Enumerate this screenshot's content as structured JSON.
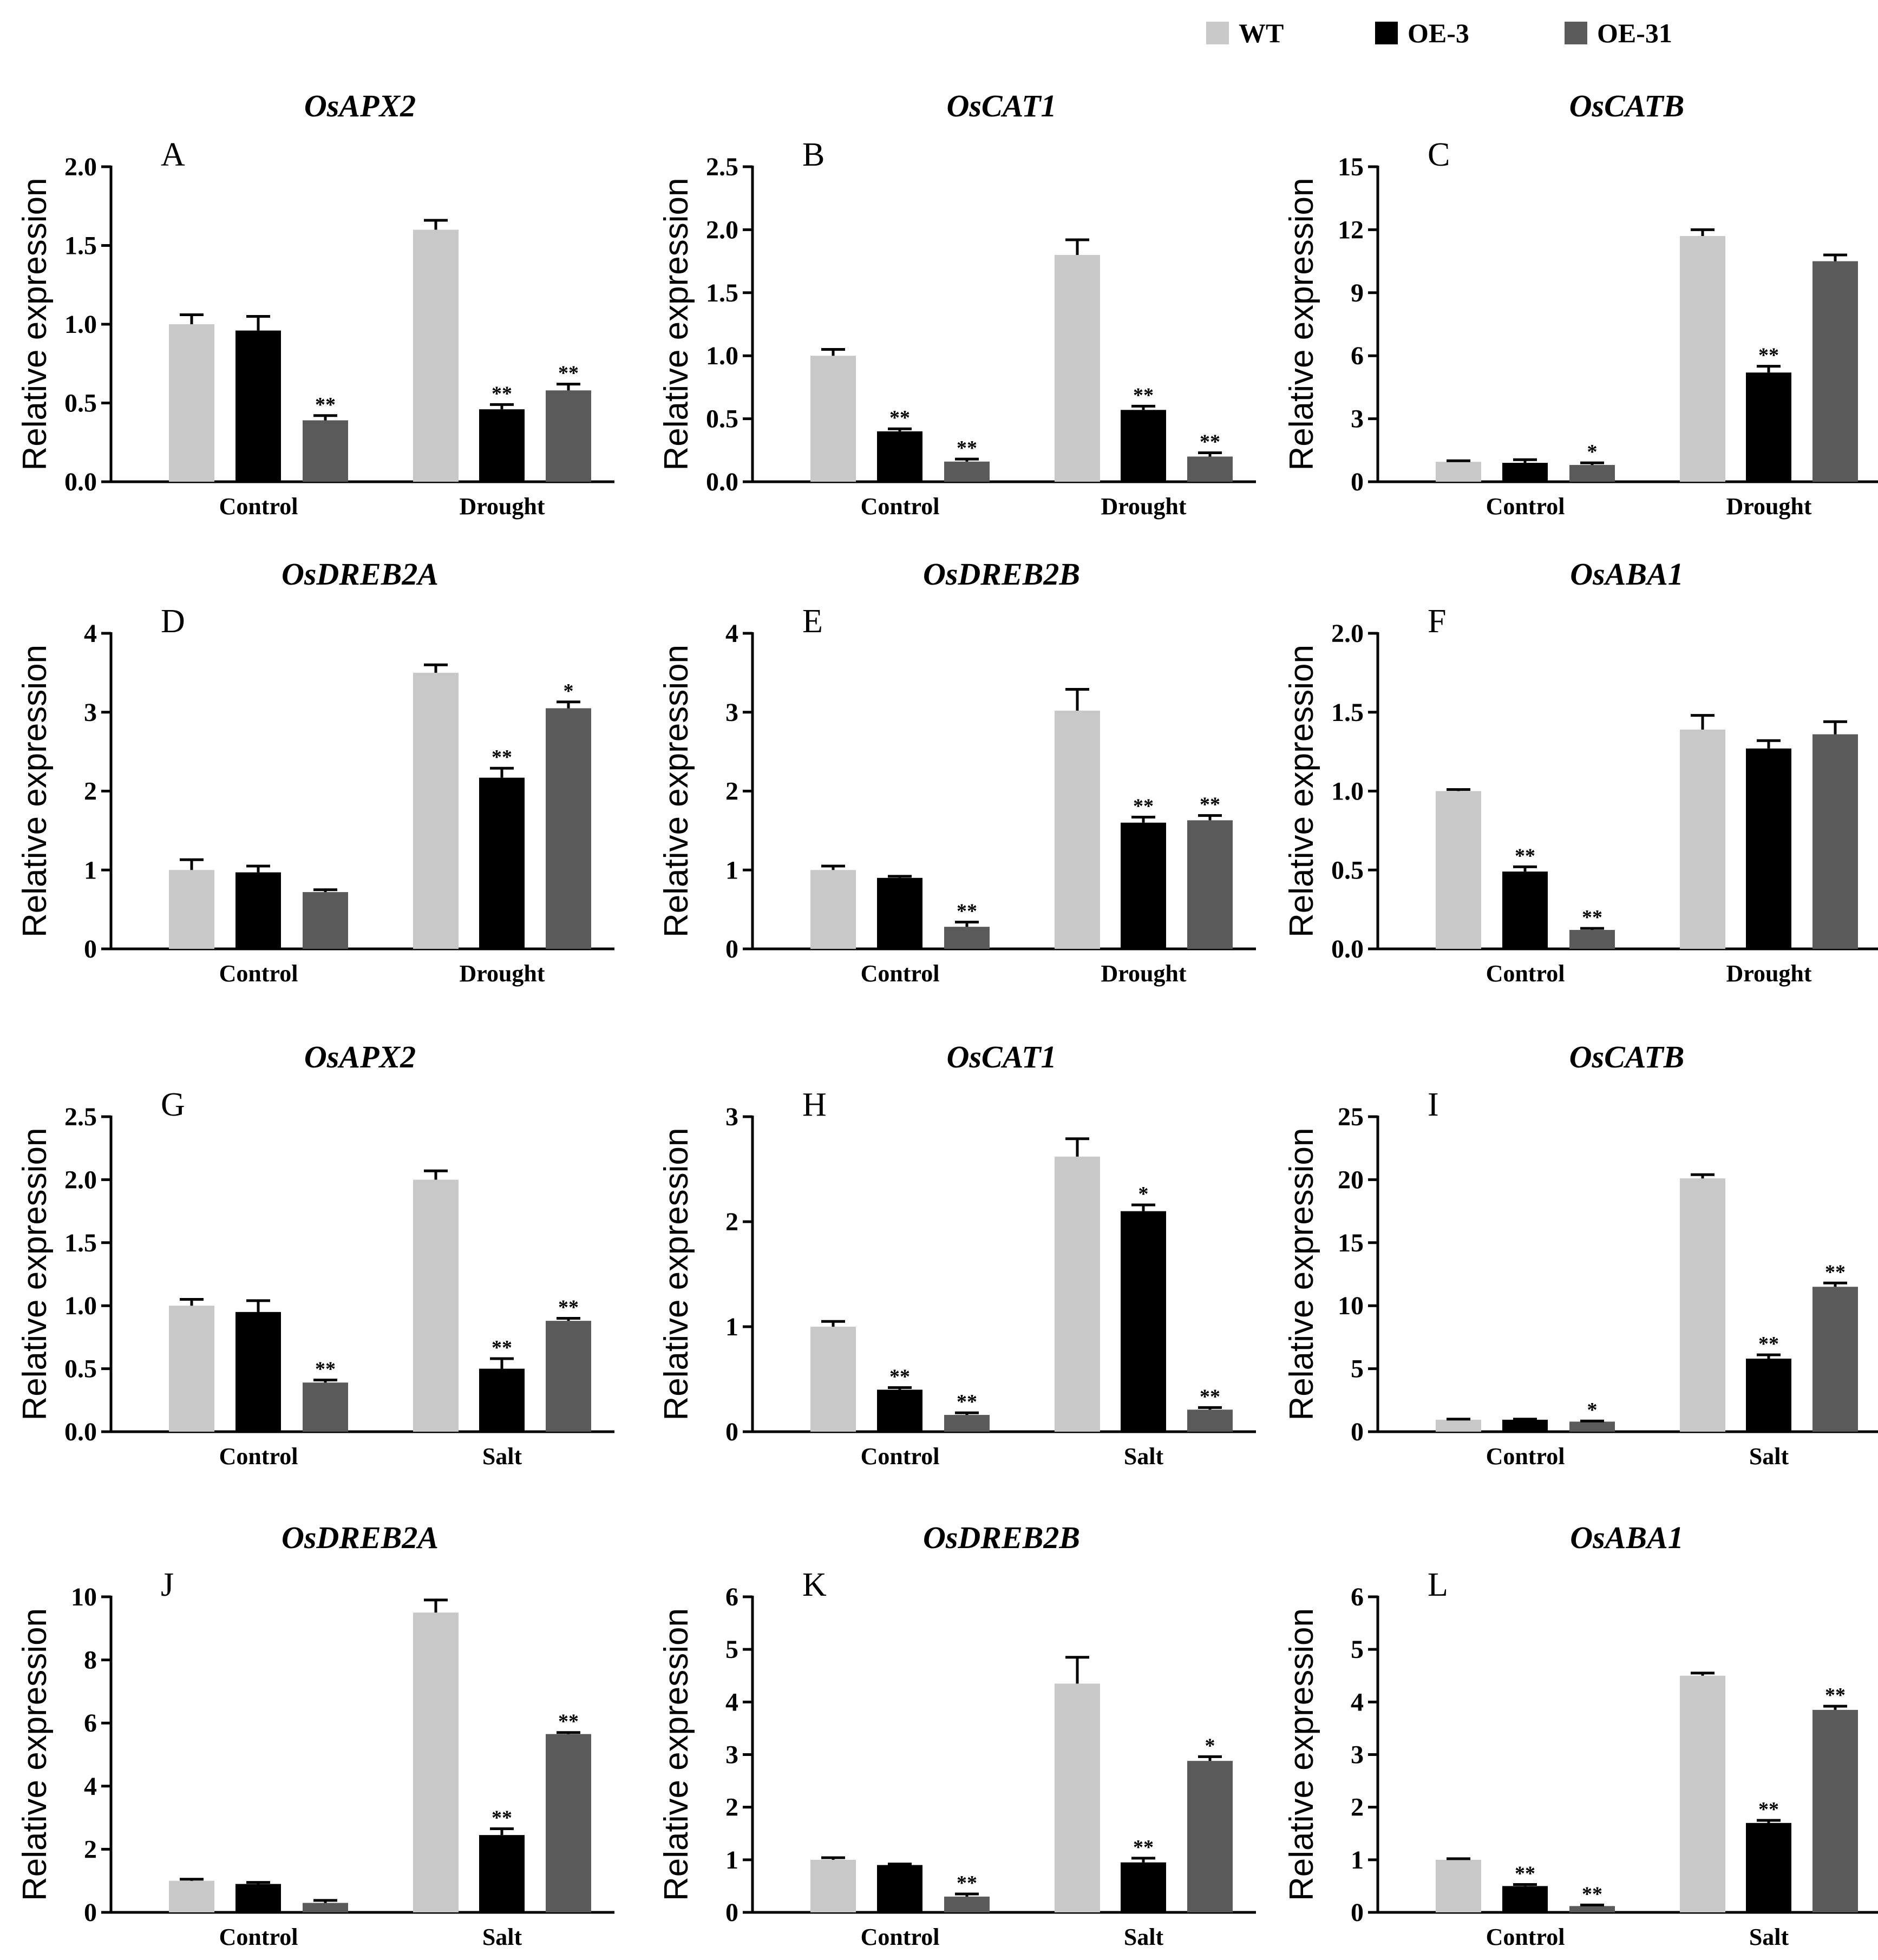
{
  "legend": [
    {
      "name": "WT",
      "color": "#c8c8c8"
    },
    {
      "name": "OE-3",
      "color": "#000000"
    },
    {
      "name": "OE-31",
      "color": "#5a5a5a"
    }
  ],
  "chart_data": [
    {
      "letter": "A",
      "title": "OsAPX2",
      "type": "bar",
      "ylabel": "Relative expression",
      "ylim": [
        0,
        2.0
      ],
      "ticks": [
        "0.0",
        "0.5",
        "1.0",
        "1.5",
        "2.0"
      ],
      "categories": [
        "Control",
        "Drought"
      ],
      "series": [
        {
          "name": "WT",
          "values": [
            1.0,
            1.6
          ],
          "errors": [
            0.06,
            0.06
          ],
          "sig": [
            "",
            ""
          ]
        },
        {
          "name": "OE-3",
          "values": [
            0.96,
            0.46
          ],
          "errors": [
            0.09,
            0.03
          ],
          "sig": [
            "",
            "**"
          ]
        },
        {
          "name": "OE-31",
          "values": [
            0.39,
            0.58
          ],
          "errors": [
            0.03,
            0.04
          ],
          "sig": [
            "**",
            "**"
          ]
        }
      ]
    },
    {
      "letter": "B",
      "title": "OsCAT1",
      "type": "bar",
      "ylabel": "Relative expression",
      "ylim": [
        0,
        2.5
      ],
      "ticks": [
        "0.0",
        "0.5",
        "1.0",
        "1.5",
        "2.0",
        "2.5"
      ],
      "categories": [
        "Control",
        "Drought"
      ],
      "series": [
        {
          "name": "WT",
          "values": [
            1.0,
            1.8
          ],
          "errors": [
            0.05,
            0.12
          ],
          "sig": [
            "",
            ""
          ]
        },
        {
          "name": "OE-3",
          "values": [
            0.4,
            0.57
          ],
          "errors": [
            0.02,
            0.03
          ],
          "sig": [
            "**",
            "**"
          ]
        },
        {
          "name": "OE-31",
          "values": [
            0.16,
            0.2
          ],
          "errors": [
            0.02,
            0.03
          ],
          "sig": [
            "**",
            "**"
          ]
        }
      ]
    },
    {
      "letter": "C",
      "title": "OsCATB",
      "type": "bar",
      "ylabel": "Relative expression",
      "ylim": [
        0,
        15
      ],
      "ticks": [
        "0",
        "3",
        "6",
        "9",
        "12",
        "15"
      ],
      "categories": [
        "Control",
        "Drought"
      ],
      "series": [
        {
          "name": "WT",
          "values": [
            0.95,
            11.7
          ],
          "errors": [
            0.05,
            0.3
          ],
          "sig": [
            "",
            ""
          ]
        },
        {
          "name": "OE-3",
          "values": [
            0.9,
            5.2
          ],
          "errors": [
            0.15,
            0.3
          ],
          "sig": [
            "",
            "**"
          ]
        },
        {
          "name": "OE-31",
          "values": [
            0.8,
            10.5
          ],
          "errors": [
            0.1,
            0.3
          ],
          "sig": [
            "*",
            ""
          ]
        }
      ]
    },
    {
      "letter": "D",
      "title": "OsDREB2A",
      "type": "bar",
      "ylabel": "Relative expression",
      "ylim": [
        0,
        4
      ],
      "ticks": [
        "0",
        "1",
        "2",
        "3",
        "4"
      ],
      "categories": [
        "Control",
        "Drought"
      ],
      "series": [
        {
          "name": "WT",
          "values": [
            1.0,
            3.5
          ],
          "errors": [
            0.13,
            0.1
          ],
          "sig": [
            "",
            ""
          ]
        },
        {
          "name": "OE-3",
          "values": [
            0.97,
            2.17
          ],
          "errors": [
            0.08,
            0.12
          ],
          "sig": [
            "",
            "**"
          ]
        },
        {
          "name": "OE-31",
          "values": [
            0.72,
            3.05
          ],
          "errors": [
            0.03,
            0.08
          ],
          "sig": [
            "",
            "*"
          ]
        }
      ]
    },
    {
      "letter": "E",
      "title": "OsDREB2B",
      "type": "bar",
      "ylabel": "Relative expression",
      "ylim": [
        0,
        4
      ],
      "ticks": [
        "0",
        "1",
        "2",
        "3",
        "4"
      ],
      "categories": [
        "Control",
        "Drought"
      ],
      "series": [
        {
          "name": "WT",
          "values": [
            1.0,
            3.02
          ],
          "errors": [
            0.05,
            0.27
          ],
          "sig": [
            "",
            ""
          ]
        },
        {
          "name": "OE-3",
          "values": [
            0.9,
            1.6
          ],
          "errors": [
            0.02,
            0.07
          ],
          "sig": [
            "",
            "**"
          ]
        },
        {
          "name": "OE-31",
          "values": [
            0.28,
            1.63
          ],
          "errors": [
            0.06,
            0.06
          ],
          "sig": [
            "**",
            "**"
          ]
        }
      ]
    },
    {
      "letter": "F",
      "title": "OsABA1",
      "type": "bar",
      "ylabel": "Relative expression",
      "ylim": [
        0,
        2.0
      ],
      "ticks": [
        "0.0",
        "0.5",
        "1.0",
        "1.5",
        "2.0"
      ],
      "categories": [
        "Control",
        "Drought"
      ],
      "series": [
        {
          "name": "WT",
          "values": [
            1.0,
            1.39
          ],
          "errors": [
            0.01,
            0.09
          ],
          "sig": [
            "",
            ""
          ]
        },
        {
          "name": "OE-3",
          "values": [
            0.49,
            1.27
          ],
          "errors": [
            0.03,
            0.05
          ],
          "sig": [
            "**",
            ""
          ]
        },
        {
          "name": "OE-31",
          "values": [
            0.12,
            1.36
          ],
          "errors": [
            0.01,
            0.08
          ],
          "sig": [
            "**",
            ""
          ]
        }
      ]
    },
    {
      "letter": "G",
      "title": "OsAPX2",
      "type": "bar",
      "ylabel": "Relative expression",
      "ylim": [
        0,
        2.5
      ],
      "ticks": [
        "0.0",
        "0.5",
        "1.0",
        "1.5",
        "2.0",
        "2.5"
      ],
      "categories": [
        "Control",
        "Salt"
      ],
      "series": [
        {
          "name": "WT",
          "values": [
            1.0,
            2.0
          ],
          "errors": [
            0.05,
            0.07
          ],
          "sig": [
            "",
            ""
          ]
        },
        {
          "name": "OE-3",
          "values": [
            0.95,
            0.5
          ],
          "errors": [
            0.09,
            0.08
          ],
          "sig": [
            "",
            "**"
          ]
        },
        {
          "name": "OE-31",
          "values": [
            0.39,
            0.88
          ],
          "errors": [
            0.02,
            0.02
          ],
          "sig": [
            "**",
            "**"
          ]
        }
      ]
    },
    {
      "letter": "H",
      "title": "OsCAT1",
      "type": "bar",
      "ylabel": "Relative expression",
      "ylim": [
        0,
        3
      ],
      "ticks": [
        "0",
        "1",
        "2",
        "3"
      ],
      "categories": [
        "Control",
        "Salt"
      ],
      "series": [
        {
          "name": "WT",
          "values": [
            1.0,
            2.62
          ],
          "errors": [
            0.05,
            0.17
          ],
          "sig": [
            "",
            ""
          ]
        },
        {
          "name": "OE-3",
          "values": [
            0.4,
            2.1
          ],
          "errors": [
            0.02,
            0.06
          ],
          "sig": [
            "**",
            "*"
          ]
        },
        {
          "name": "OE-31",
          "values": [
            0.16,
            0.21
          ],
          "errors": [
            0.02,
            0.02
          ],
          "sig": [
            "**",
            "**"
          ]
        }
      ]
    },
    {
      "letter": "I",
      "title": "OsCATB",
      "type": "bar",
      "ylabel": "Relative expression",
      "ylim": [
        0,
        25
      ],
      "ticks": [
        "0",
        "5",
        "10",
        "15",
        "20",
        "25"
      ],
      "categories": [
        "Control",
        "Salt"
      ],
      "series": [
        {
          "name": "WT",
          "values": [
            0.95,
            20.1
          ],
          "errors": [
            0.05,
            0.3
          ],
          "sig": [
            "",
            ""
          ]
        },
        {
          "name": "OE-3",
          "values": [
            0.95,
            5.8
          ],
          "errors": [
            0.05,
            0.3
          ],
          "sig": [
            "",
            "**"
          ]
        },
        {
          "name": "OE-31",
          "values": [
            0.8,
            11.5
          ],
          "errors": [
            0.05,
            0.3
          ],
          "sig": [
            "*",
            "**"
          ]
        }
      ]
    },
    {
      "letter": "J",
      "title": "OsDREB2A",
      "type": "bar",
      "ylabel": "Relative expression",
      "ylim": [
        0,
        10
      ],
      "ticks": [
        "0",
        "2",
        "4",
        "6",
        "8",
        "10"
      ],
      "categories": [
        "Control",
        "Salt"
      ],
      "series": [
        {
          "name": "WT",
          "values": [
            1.0,
            9.5
          ],
          "errors": [
            0.05,
            0.4
          ],
          "sig": [
            "",
            ""
          ]
        },
        {
          "name": "OE-3",
          "values": [
            0.9,
            2.45
          ],
          "errors": [
            0.05,
            0.2
          ],
          "sig": [
            "",
            "**"
          ]
        },
        {
          "name": "OE-31",
          "values": [
            0.3,
            5.65
          ],
          "errors": [
            0.08,
            0.05
          ],
          "sig": [
            "",
            "**"
          ]
        }
      ]
    },
    {
      "letter": "K",
      "title": "OsDREB2B",
      "type": "bar",
      "ylabel": "Relative expression",
      "ylim": [
        0,
        6
      ],
      "ticks": [
        "0",
        "1",
        "2",
        "3",
        "4",
        "5",
        "6"
      ],
      "categories": [
        "Control",
        "Salt"
      ],
      "series": [
        {
          "name": "WT",
          "values": [
            1.0,
            4.35
          ],
          "errors": [
            0.04,
            0.5
          ],
          "sig": [
            "",
            ""
          ]
        },
        {
          "name": "OE-3",
          "values": [
            0.9,
            0.95
          ],
          "errors": [
            0.02,
            0.08
          ],
          "sig": [
            "",
            "**"
          ]
        },
        {
          "name": "OE-31",
          "values": [
            0.3,
            2.88
          ],
          "errors": [
            0.05,
            0.08
          ],
          "sig": [
            "**",
            "*"
          ]
        }
      ]
    },
    {
      "letter": "L",
      "title": "OsABA1",
      "type": "bar",
      "ylabel": "Relative expression",
      "ylim": [
        0,
        6
      ],
      "ticks": [
        "0",
        "1",
        "2",
        "3",
        "4",
        "5",
        "6"
      ],
      "categories": [
        "Control",
        "Salt"
      ],
      "series": [
        {
          "name": "WT",
          "values": [
            1.0,
            4.5
          ],
          "errors": [
            0.02,
            0.05
          ],
          "sig": [
            "",
            ""
          ]
        },
        {
          "name": "OE-3",
          "values": [
            0.5,
            1.7
          ],
          "errors": [
            0.03,
            0.05
          ],
          "sig": [
            "**",
            "**"
          ]
        },
        {
          "name": "OE-31",
          "values": [
            0.12,
            3.85
          ],
          "errors": [
            0.02,
            0.07
          ],
          "sig": [
            "**",
            "**"
          ]
        }
      ]
    }
  ]
}
